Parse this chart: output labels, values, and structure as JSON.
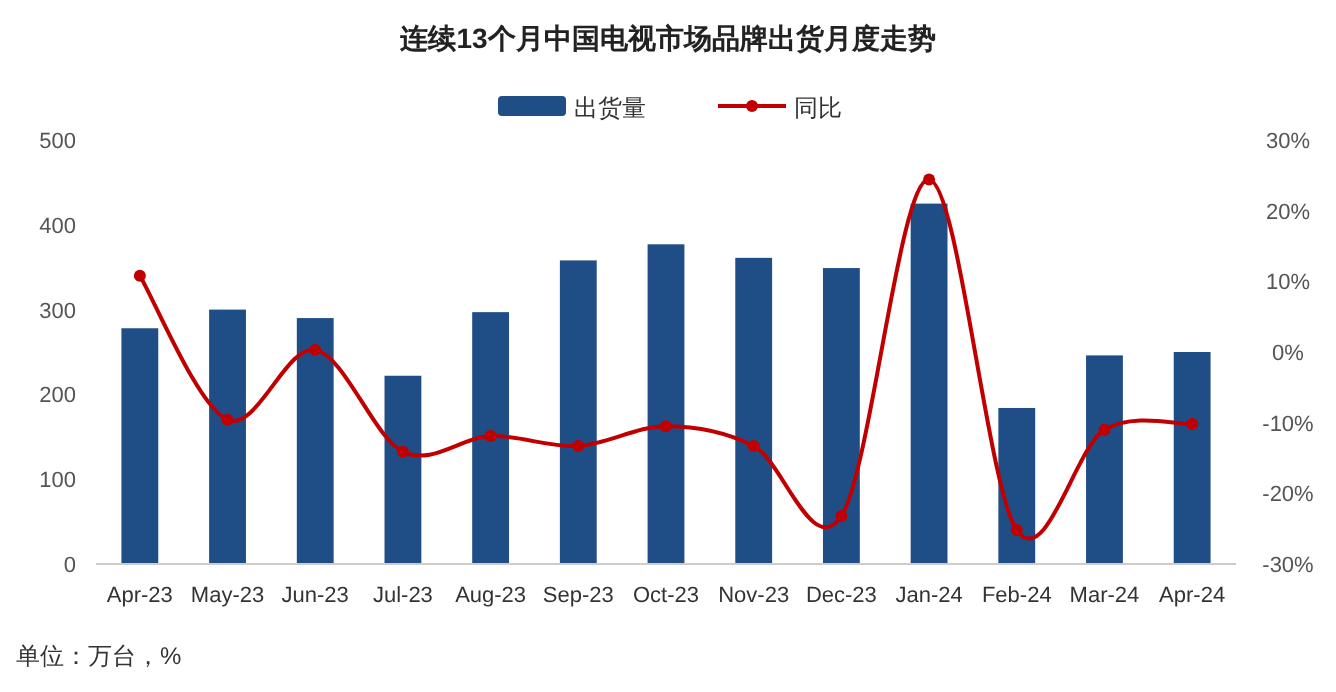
{
  "chart_data": {
    "type": "bar",
    "title": "连续13个月中国电视市场品牌出货月度走势",
    "categories": [
      "Apr-23",
      "May-23",
      "Jun-23",
      "Jul-23",
      "Aug-23",
      "Sep-23",
      "Oct-23",
      "Nov-23",
      "Dec-23",
      "Jan-24",
      "Feb-24",
      "Mar-24",
      "Apr-24"
    ],
    "series": [
      {
        "name": "出货量",
        "color": "#1f4e87",
        "values": [
          278,
          300,
          290,
          222,
          297,
          358,
          377,
          361,
          349,
          425,
          184,
          246,
          250
        ]
      },
      {
        "name": "同比",
        "type": "line",
        "axis": "y2",
        "color": "#c00000",
        "values": [
          10.8,
          -9.6,
          0.3,
          -14.1,
          -11.9,
          -13.3,
          -10.5,
          -13.3,
          -23.2,
          24.4,
          -25.2,
          -11.0,
          -10.2
        ]
      }
    ],
    "ylim": [
      0,
      500
    ],
    "yticks": [
      0,
      100,
      200,
      300,
      400,
      500
    ],
    "y2lim": [
      -30,
      30
    ],
    "y2ticks": [
      {
        "value": -30,
        "label": "-30%"
      },
      {
        "value": -20,
        "label": "-20%"
      },
      {
        "value": -10,
        "label": "-10%"
      },
      {
        "value": 0,
        "label": "0%"
      },
      {
        "value": 10,
        "label": "10%"
      },
      {
        "value": 20,
        "label": "20%"
      },
      {
        "value": 30,
        "label": "30%"
      }
    ],
    "grid": false,
    "legend": "top",
    "marker": "circle",
    "line_style": "solid",
    "annotations": [
      "单位：万台，%"
    ]
  }
}
